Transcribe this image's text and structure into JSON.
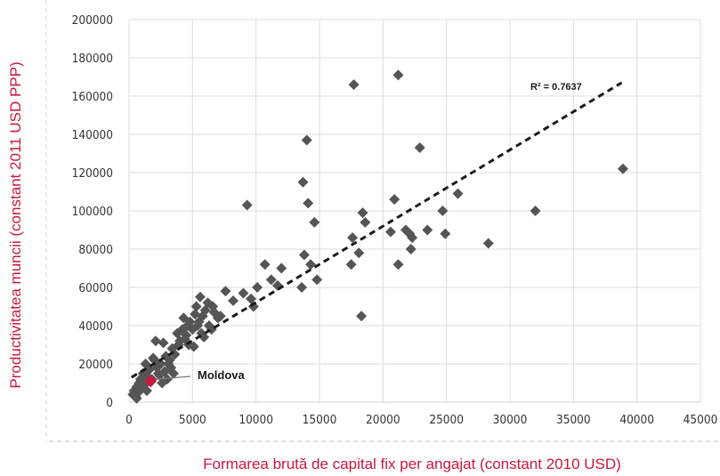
{
  "chart_data": {
    "type": "scatter",
    "xlabel": "Formarea brută de capital fix per angajat (constant 2010 USD)",
    "ylabel": "Productivitatea muncii (constant 2011 USD PPP)",
    "xlim": [
      0,
      45000
    ],
    "ylim": [
      0,
      200000
    ],
    "x_ticks": [
      "0",
      "5000",
      "10000",
      "15000",
      "20000",
      "25000",
      "30000",
      "35000",
      "40000",
      "45000"
    ],
    "y_ticks": [
      "0",
      "20000",
      "40000",
      "60000",
      "80000",
      "100000",
      "120000",
      "140000",
      "160000",
      "180000",
      "200000"
    ],
    "grid": true,
    "trendline": {
      "type": "linear",
      "x": [
        200,
        38800
      ],
      "y": [
        13000,
        167000
      ],
      "label": "R² = 0.7637"
    },
    "highlight": {
      "label": "Moldova",
      "x": 1700,
      "y": 11000,
      "color": "#c8183f"
    },
    "series_color": "#555555",
    "points": [
      [
        300,
        4000
      ],
      [
        400,
        6000
      ],
      [
        500,
        3000
      ],
      [
        600,
        8000
      ],
      [
        700,
        5000
      ],
      [
        800,
        10000
      ],
      [
        900,
        12000
      ],
      [
        1000,
        7000
      ],
      [
        1100,
        15000
      ],
      [
        1200,
        9000
      ],
      [
        1300,
        20000
      ],
      [
        1500,
        13000
      ],
      [
        1600,
        17000
      ],
      [
        1800,
        12000
      ],
      [
        2000,
        22000
      ],
      [
        2100,
        32000
      ],
      [
        2200,
        18000
      ],
      [
        2400,
        14000
      ],
      [
        2500,
        20000
      ],
      [
        2700,
        31000
      ],
      [
        2800,
        16000
      ],
      [
        2900,
        24000
      ],
      [
        3000,
        12000
      ],
      [
        3100,
        20000
      ],
      [
        3200,
        22000
      ],
      [
        3400,
        28000
      ],
      [
        3600,
        25000
      ],
      [
        3800,
        36000
      ],
      [
        3900,
        30000
      ],
      [
        4000,
        32000
      ],
      [
        4200,
        38000
      ],
      [
        4300,
        44000
      ],
      [
        4500,
        35000
      ],
      [
        4600,
        40000
      ],
      [
        4700,
        30000
      ],
      [
        4800,
        42000
      ],
      [
        5000,
        38000
      ],
      [
        5100,
        29000
      ],
      [
        5200,
        46000
      ],
      [
        5300,
        50000
      ],
      [
        5400,
        40000
      ],
      [
        5500,
        42000
      ],
      [
        5600,
        55000
      ],
      [
        5700,
        36000
      ],
      [
        5800,
        45000
      ],
      [
        6000,
        48000
      ],
      [
        6200,
        52000
      ],
      [
        6300,
        40000
      ],
      [
        6500,
        38000
      ],
      [
        6700,
        47000
      ],
      [
        7000,
        44000
      ],
      [
        7200,
        45000
      ],
      [
        7600,
        58000
      ],
      [
        8200,
        53000
      ],
      [
        9000,
        57000
      ],
      [
        9300,
        103000
      ],
      [
        9600,
        54000
      ],
      [
        9800,
        50000
      ],
      [
        10100,
        60000
      ],
      [
        10700,
        72000
      ],
      [
        11200,
        64000
      ],
      [
        11700,
        61000
      ],
      [
        12000,
        70000
      ],
      [
        13600,
        60000
      ],
      [
        13700,
        115000
      ],
      [
        13800,
        77000
      ],
      [
        14000,
        137000
      ],
      [
        14100,
        104000
      ],
      [
        14300,
        72000
      ],
      [
        14600,
        94000
      ],
      [
        14800,
        64000
      ],
      [
        17500,
        72000
      ],
      [
        17600,
        86000
      ],
      [
        17700,
        166000
      ],
      [
        18100,
        78000
      ],
      [
        18300,
        45000
      ],
      [
        18400,
        99000
      ],
      [
        18600,
        94000
      ],
      [
        20600,
        89000
      ],
      [
        20900,
        106000
      ],
      [
        21200,
        72000
      ],
      [
        21200,
        171000
      ],
      [
        21800,
        90000
      ],
      [
        22100,
        88000
      ],
      [
        22200,
        80000
      ],
      [
        22300,
        86000
      ],
      [
        22900,
        133000
      ],
      [
        23500,
        90000
      ],
      [
        24700,
        100000
      ],
      [
        24900,
        88000
      ],
      [
        25900,
        109000
      ],
      [
        28300,
        83000
      ],
      [
        32000,
        100000
      ],
      [
        38900,
        122000
      ],
      [
        1900,
        23000
      ],
      [
        2300,
        15000
      ],
      [
        3300,
        18000
      ],
      [
        4400,
        33000
      ],
      [
        5900,
        34000
      ],
      [
        6600,
        50000
      ],
      [
        1000,
        11000
      ],
      [
        600,
        2000
      ],
      [
        1400,
        6000
      ],
      [
        2600,
        10000
      ],
      [
        3500,
        15000
      ]
    ]
  }
}
